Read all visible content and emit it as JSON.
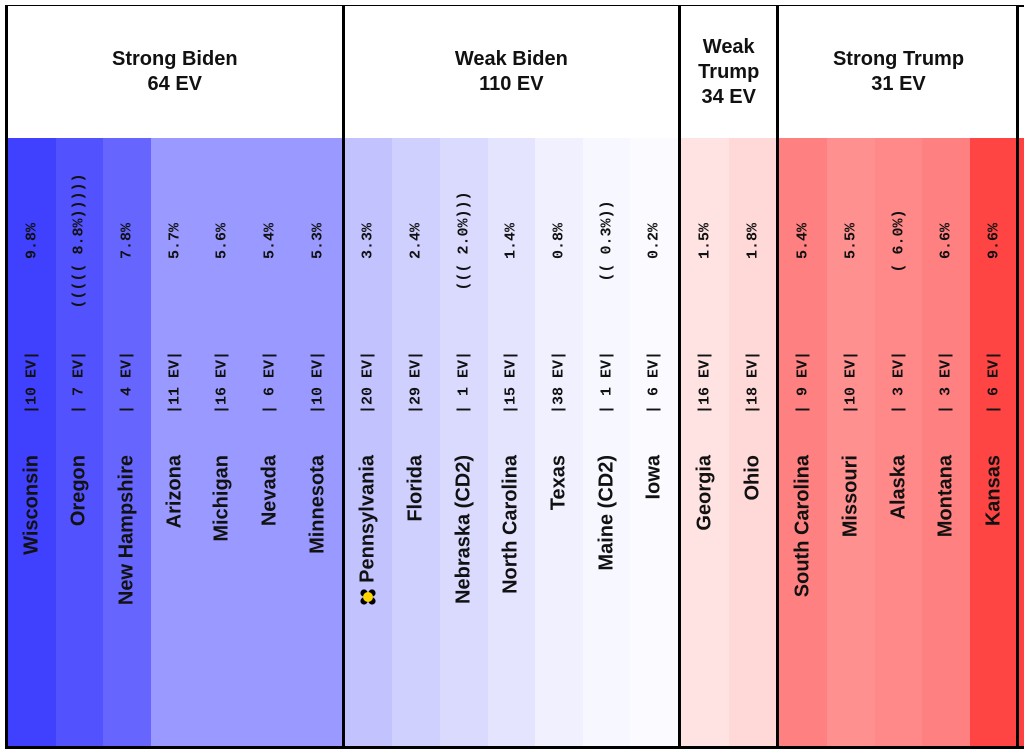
{
  "chart_data": {
    "type": "table",
    "groups": [
      {
        "label_lines": [
          "Strong Biden",
          "64 EV"
        ],
        "states": [
          {
            "name": "Wisconsin",
            "ev": "|10 EV|",
            "margin": "9.8%",
            "color": "#4040ff"
          },
          {
            "name": "Oregon",
            "ev": "| 7 EV|",
            "margin": "((((( 8.8%)))))",
            "color": "#5252ff"
          },
          {
            "name": "New Hampshire",
            "ev": "| 4 EV|",
            "margin": "7.8%",
            "color": "#6666ff"
          },
          {
            "name": "Arizona",
            "ev": "|11 EV|",
            "margin": "5.7%",
            "color": "#9999ff"
          },
          {
            "name": "Michigan",
            "ev": "|16 EV|",
            "margin": "5.6%",
            "color": "#9999ff"
          },
          {
            "name": "Nevada",
            "ev": "| 6 EV|",
            "margin": "5.4%",
            "color": "#9999ff"
          },
          {
            "name": "Minnesota",
            "ev": "|10 EV|",
            "margin": "5.3%",
            "color": "#9999ff"
          }
        ]
      },
      {
        "label_lines": [
          "Weak Biden",
          "110 EV"
        ],
        "states": [
          {
            "name": "Pennsylvania",
            "ev": "|20 EV|",
            "margin": "3.3%",
            "color": "#c2c2ff",
            "tipping_point": true
          },
          {
            "name": "Florida",
            "ev": "|29 EV|",
            "margin": "2.4%",
            "color": "#d0d0ff"
          },
          {
            "name": "Nebraska (CD2)",
            "ev": "| 1 EV|",
            "margin": "((( 2.0%)))",
            "color": "#dadaff"
          },
          {
            "name": "North Carolina",
            "ev": "|15 EV|",
            "margin": "1.4%",
            "color": "#e4e4ff"
          },
          {
            "name": "Texas",
            "ev": "|38 EV|",
            "margin": "0.8%",
            "color": "#f0f0ff"
          },
          {
            "name": "Maine (CD2)",
            "ev": "| 1 EV|",
            "margin": "(( 0.3%))",
            "color": "#f7f7ff"
          },
          {
            "name": "Iowa",
            "ev": "| 6 EV|",
            "margin": "0.2%",
            "color": "#fbfbff"
          }
        ]
      },
      {
        "label_lines": [
          "Weak",
          "Trump",
          "34 EV"
        ],
        "states": [
          {
            "name": "Georgia",
            "ev": "|16 EV|",
            "margin": "1.5%",
            "color": "#ffe2e2"
          },
          {
            "name": "Ohio",
            "ev": "|18 EV|",
            "margin": "1.8%",
            "color": "#ffd8d8"
          }
        ]
      },
      {
        "label_lines": [
          "Strong Trump",
          "31 EV"
        ],
        "states": [
          {
            "name": "South Carolina",
            "ev": "| 9 EV|",
            "margin": "5.4%",
            "color": "#ff8080"
          },
          {
            "name": "Missouri",
            "ev": "|10 EV|",
            "margin": "5.5%",
            "color": "#ff9090"
          },
          {
            "name": "Alaska",
            "ev": "| 3 EV|",
            "margin": "( 6.0%)",
            "color": "#ff8888"
          },
          {
            "name": "Montana",
            "ev": "| 3 EV|",
            "margin": "6.6%",
            "color": "#ff8080"
          },
          {
            "name": "Kansas",
            "ev": "| 6 EV|",
            "margin": "9.6%",
            "color": "#ff4444"
          }
        ]
      }
    ],
    "overflow_color": "#ff4040",
    "marker_color": "#ffd400"
  }
}
